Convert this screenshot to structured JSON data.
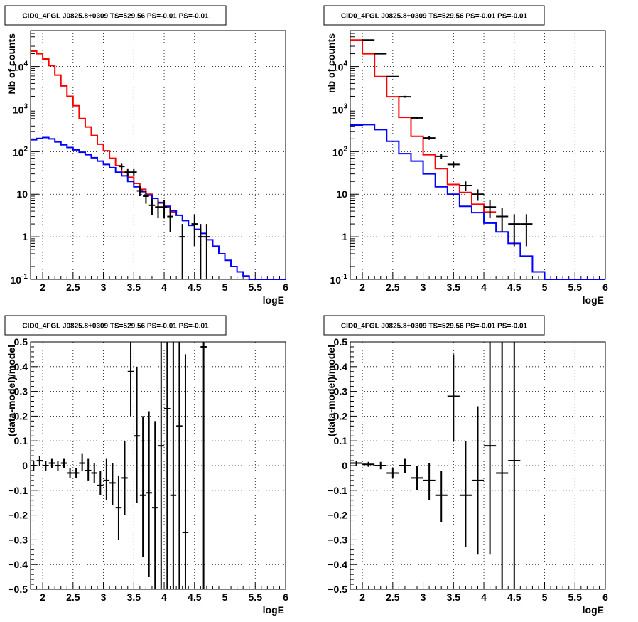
{
  "chart_data": [
    {
      "type": "line",
      "title": "CID0_4FGL J0825.8+0309 TS=529.56 PS=-0.01 PS=-0.01",
      "xlabel": "logE",
      "ylabel": "Nb of counts",
      "xlim": [
        1.8,
        6.0
      ],
      "ylim": [
        0.1,
        70000
      ],
      "yscale": "log",
      "grid": true,
      "x_ticks": [
        "2",
        "2.5",
        "3",
        "3.5",
        "4",
        "4.5",
        "5",
        "5.5",
        "6"
      ],
      "y_ticks": [
        {
          "v": 1,
          "t": "1"
        },
        {
          "v": 10,
          "t": "10"
        }
      ],
      "y_ticks_pow": [
        {
          "v": 0.1,
          "exp": "-1"
        },
        {
          "v": 100,
          "exp": "2"
        },
        {
          "v": 1000,
          "exp": "3"
        },
        {
          "v": 10000,
          "exp": "4"
        }
      ],
      "bin_width": 0.1,
      "bin_start": 1.8,
      "series": [
        {
          "color": "#ff0000",
          "style": "step",
          "values": [
            23000,
            20000,
            15000,
            10500,
            6300,
            3500,
            2000,
            1200,
            600,
            380,
            240,
            150,
            105,
            70,
            47,
            33,
            25,
            18,
            13,
            10,
            8,
            6.2,
            5,
            3.8
          ]
        },
        {
          "color": "#0000ff",
          "style": "step",
          "values": [
            190,
            205,
            215,
            200,
            170,
            145,
            125,
            110,
            97,
            85,
            72,
            60,
            50,
            42,
            33,
            27,
            20,
            15,
            11.5,
            9.5,
            8,
            6.4,
            5.2,
            4.1,
            3.2,
            2.4,
            1.85,
            1.5,
            1.2,
            0.85,
            0.6,
            0.4,
            0.28,
            0.2,
            0.15,
            0.12,
            0.1,
            0.1,
            0.1,
            0.1,
            0.1,
            0.1
          ]
        }
      ],
      "points": [
        {
          "x": 3.3,
          "y": 45,
          "ylo": 38,
          "yhi": 52
        },
        {
          "x": 3.4,
          "y": 33,
          "ylo": 27,
          "yhi": 39
        },
        {
          "x": 3.5,
          "y": 33,
          "ylo": 27,
          "yhi": 39
        },
        {
          "x": 3.6,
          "y": 12,
          "ylo": 9,
          "yhi": 15.5
        },
        {
          "x": 3.7,
          "y": 9,
          "ylo": 6,
          "yhi": 12
        },
        {
          "x": 3.8,
          "y": 5.5,
          "ylo": 3.3,
          "yhi": 7.7
        },
        {
          "x": 3.9,
          "y": 5,
          "ylo": 2.8,
          "yhi": 7.2
        },
        {
          "x": 4.0,
          "y": 5,
          "ylo": 2.8,
          "yhi": 7.2
        },
        {
          "x": 4.1,
          "y": 3,
          "ylo": 1.3,
          "yhi": 4.7
        },
        {
          "x": 4.3,
          "y": 1,
          "ylo": 0.1,
          "yhi": 2
        },
        {
          "x": 4.5,
          "y": 2,
          "ylo": 0.6,
          "yhi": 3.4
        },
        {
          "x": 4.6,
          "y": 1,
          "ylo": 0.1,
          "yhi": 2
        },
        {
          "x": 4.7,
          "y": 1,
          "ylo": 0.1,
          "yhi": 2
        }
      ]
    },
    {
      "type": "line",
      "title": "CID0_4FGL J0825.8+0309 TS=529.56 PS=-0.01 PS=-0.01",
      "xlabel": "logE",
      "ylabel": "nb of counts",
      "xlim": [
        1.8,
        6.0
      ],
      "ylim": [
        0.1,
        70000
      ],
      "yscale": "log",
      "grid": true,
      "x_ticks": [
        "2",
        "2.5",
        "3",
        "3.5",
        "4",
        "4.5",
        "5",
        "5.5",
        "6"
      ],
      "y_ticks": [
        {
          "v": 1,
          "t": "1"
        },
        {
          "v": 10,
          "t": "10"
        }
      ],
      "y_ticks_pow": [
        {
          "v": 0.1,
          "exp": "-1"
        },
        {
          "v": 100,
          "exp": "2"
        },
        {
          "v": 1000,
          "exp": "3"
        },
        {
          "v": 10000,
          "exp": "4"
        }
      ],
      "bin_width": 0.2,
      "bin_start": 1.8,
      "series": [
        {
          "color": "#ff0000",
          "style": "step",
          "values": [
            42000,
            20000,
            5800,
            1950,
            640,
            230,
            85,
            40,
            17,
            11,
            5.8,
            3.8
          ]
        },
        {
          "color": "#0000ff",
          "style": "step",
          "values": [
            420,
            430,
            330,
            175,
            90,
            60,
            30,
            15,
            10,
            5.2,
            3.7,
            2.1,
            1.3,
            0.7,
            0.35,
            0.15,
            0.1,
            0.1,
            0.1,
            0.1,
            0.1
          ]
        }
      ],
      "points": [
        {
          "x": 2.1,
          "y": 42000,
          "ylo": 41000,
          "yhi": 43000
        },
        {
          "x": 2.3,
          "y": 20000,
          "ylo": 19500,
          "yhi": 20500
        },
        {
          "x": 2.5,
          "y": 5800,
          "ylo": 5600,
          "yhi": 6000
        },
        {
          "x": 2.7,
          "y": 1950,
          "ylo": 1850,
          "yhi": 2050
        },
        {
          "x": 2.9,
          "y": 620,
          "ylo": 580,
          "yhi": 660
        },
        {
          "x": 3.1,
          "y": 210,
          "ylo": 190,
          "yhi": 230
        },
        {
          "x": 3.3,
          "y": 78,
          "ylo": 68,
          "yhi": 88
        },
        {
          "x": 3.5,
          "y": 50,
          "ylo": 43,
          "yhi": 57
        },
        {
          "x": 3.7,
          "y": 16,
          "ylo": 12,
          "yhi": 20
        },
        {
          "x": 3.9,
          "y": 10,
          "ylo": 7,
          "yhi": 13
        },
        {
          "x": 4.1,
          "y": 5,
          "ylo": 2.8,
          "yhi": 7.2
        },
        {
          "x": 4.3,
          "y": 3,
          "ylo": 1.3,
          "yhi": 4.7
        },
        {
          "x": 4.5,
          "y": 2,
          "ylo": 0.6,
          "yhi": 3.4
        },
        {
          "x": 4.7,
          "y": 2,
          "ylo": 0.6,
          "yhi": 3.4
        }
      ]
    },
    {
      "type": "scatter",
      "title": "CID0_4FGL J0825.8+0309 TS=529.56 PS=-0.01 PS=-0.01",
      "xlabel": "logE",
      "ylabel": "(data-model)/model",
      "xlim": [
        1.8,
        6.0
      ],
      "ylim": [
        -0.5,
        0.5
      ],
      "yscale": "linear",
      "grid": true,
      "x_ticks": [
        "2",
        "2.5",
        "3",
        "3.5",
        "4",
        "4.5",
        "5",
        "5.5",
        "6"
      ],
      "y_ticks": [
        {
          "v": -0.5,
          "t": "−0.5"
        },
        {
          "v": -0.4,
          "t": "−0.4"
        },
        {
          "v": -0.3,
          "t": "−0.3"
        },
        {
          "v": -0.2,
          "t": "−0.2"
        },
        {
          "v": -0.1,
          "t": "−0.1"
        },
        {
          "v": 0,
          "t": "0"
        },
        {
          "v": 0.1,
          "t": "0.1"
        },
        {
          "v": 0.2,
          "t": "0.2"
        },
        {
          "v": 0.3,
          "t": "0.3"
        },
        {
          "v": 0.4,
          "t": "0.4"
        },
        {
          "v": 0.5,
          "t": "0.5"
        }
      ],
      "xerr": 0.05,
      "points": [
        {
          "x": 1.85,
          "y": 0.0,
          "ylo": -0.02,
          "yhi": 0.02
        },
        {
          "x": 1.95,
          "y": 0.02,
          "ylo": 0.0,
          "yhi": 0.04
        },
        {
          "x": 2.05,
          "y": 0.0,
          "ylo": -0.02,
          "yhi": 0.02
        },
        {
          "x": 2.15,
          "y": 0.01,
          "ylo": -0.01,
          "yhi": 0.03
        },
        {
          "x": 2.25,
          "y": 0.0,
          "ylo": -0.02,
          "yhi": 0.02
        },
        {
          "x": 2.35,
          "y": 0.01,
          "ylo": -0.01,
          "yhi": 0.03
        },
        {
          "x": 2.45,
          "y": -0.03,
          "ylo": -0.05,
          "yhi": -0.01
        },
        {
          "x": 2.55,
          "y": -0.03,
          "ylo": -0.05,
          "yhi": -0.01
        },
        {
          "x": 2.65,
          "y": 0.01,
          "ylo": -0.02,
          "yhi": 0.05
        },
        {
          "x": 2.75,
          "y": -0.02,
          "ylo": -0.06,
          "yhi": 0.03
        },
        {
          "x": 2.85,
          "y": -0.03,
          "ylo": -0.07,
          "yhi": 0.01
        },
        {
          "x": 2.95,
          "y": -0.08,
          "ylo": -0.12,
          "yhi": -0.02
        },
        {
          "x": 3.05,
          "y": -0.06,
          "ylo": -0.14,
          "yhi": 0.03
        },
        {
          "x": 3.15,
          "y": -0.07,
          "ylo": -0.16,
          "yhi": 0.01
        },
        {
          "x": 3.25,
          "y": -0.17,
          "ylo": -0.3,
          "yhi": -0.04
        },
        {
          "x": 3.35,
          "y": -0.05,
          "ylo": -0.2,
          "yhi": 0.1
        },
        {
          "x": 3.45,
          "y": 0.38,
          "ylo": 0.2,
          "yhi": 0.6
        },
        {
          "x": 3.55,
          "y": 0.12,
          "ylo": -0.15,
          "yhi": 0.4
        },
        {
          "x": 3.65,
          "y": -0.12,
          "ylo": -0.37,
          "yhi": 0.2
        },
        {
          "x": 3.75,
          "y": -0.11,
          "ylo": -0.45,
          "yhi": 0.22
        },
        {
          "x": 3.85,
          "y": -0.17,
          "ylo": -0.5,
          "yhi": 0.18
        },
        {
          "x": 3.95,
          "y": 0.08,
          "ylo": -0.5,
          "yhi": 0.5
        },
        {
          "x": 4.05,
          "y": 0.23,
          "ylo": -0.5,
          "yhi": 0.5
        },
        {
          "x": 4.15,
          "y": -0.12,
          "ylo": -0.5,
          "yhi": 0.5
        },
        {
          "x": 4.25,
          "y": 0.16,
          "ylo": -0.5,
          "yhi": 0.5
        },
        {
          "x": 4.35,
          "y": -0.27,
          "ylo": -0.5,
          "yhi": 0.45
        },
        {
          "x": 4.65,
          "y": 0.48,
          "ylo": -0.5,
          "yhi": 0.5
        }
      ]
    },
    {
      "type": "scatter",
      "title": "CID0_4FGL J0825.8+0309 TS=529.56 PS=-0.01 PS=-0.01",
      "xlabel": "logE",
      "ylabel": "(data-model)/model",
      "xlim": [
        1.8,
        6.0
      ],
      "ylim": [
        -0.5,
        0.5
      ],
      "yscale": "linear",
      "grid": true,
      "x_ticks": [
        "2",
        "2.5",
        "3",
        "3.5",
        "4",
        "4.5",
        "5",
        "5.5",
        "6"
      ],
      "y_ticks": [
        {
          "v": -0.5,
          "t": "−0.5"
        },
        {
          "v": -0.4,
          "t": "−0.4"
        },
        {
          "v": -0.3,
          "t": "−0.3"
        },
        {
          "v": -0.2,
          "t": "−0.2"
        },
        {
          "v": -0.1,
          "t": "−0.1"
        },
        {
          "v": 0,
          "t": "0"
        },
        {
          "v": 0.1,
          "t": "0.1"
        },
        {
          "v": 0.2,
          "t": "0.2"
        },
        {
          "v": 0.3,
          "t": "0.3"
        },
        {
          "v": 0.4,
          "t": "0.4"
        },
        {
          "v": 0.5,
          "t": "0.5"
        }
      ],
      "xerr": 0.1,
      "points": [
        {
          "x": 1.9,
          "y": 0.01,
          "ylo": 0.0,
          "yhi": 0.02
        },
        {
          "x": 2.1,
          "y": 0.005,
          "ylo": -0.005,
          "yhi": 0.015
        },
        {
          "x": 2.3,
          "y": 0.0,
          "ylo": -0.015,
          "yhi": 0.015
        },
        {
          "x": 2.5,
          "y": -0.03,
          "ylo": -0.05,
          "yhi": -0.01
        },
        {
          "x": 2.7,
          "y": 0.0,
          "ylo": -0.03,
          "yhi": 0.03
        },
        {
          "x": 2.9,
          "y": -0.05,
          "ylo": -0.1,
          "yhi": 0.0
        },
        {
          "x": 3.1,
          "y": -0.06,
          "ylo": -0.14,
          "yhi": 0.01
        },
        {
          "x": 3.3,
          "y": -0.12,
          "ylo": -0.23,
          "yhi": -0.02
        },
        {
          "x": 3.5,
          "y": 0.28,
          "ylo": 0.1,
          "yhi": 0.45
        },
        {
          "x": 3.7,
          "y": -0.12,
          "ylo": -0.33,
          "yhi": 0.1
        },
        {
          "x": 3.9,
          "y": -0.06,
          "ylo": -0.36,
          "yhi": 0.24
        },
        {
          "x": 4.1,
          "y": 0.08,
          "ylo": -0.36,
          "yhi": 0.5
        },
        {
          "x": 4.3,
          "y": -0.03,
          "ylo": -0.5,
          "yhi": 0.5
        },
        {
          "x": 4.5,
          "y": 0.02,
          "ylo": -0.5,
          "yhi": 0.5
        }
      ]
    }
  ]
}
